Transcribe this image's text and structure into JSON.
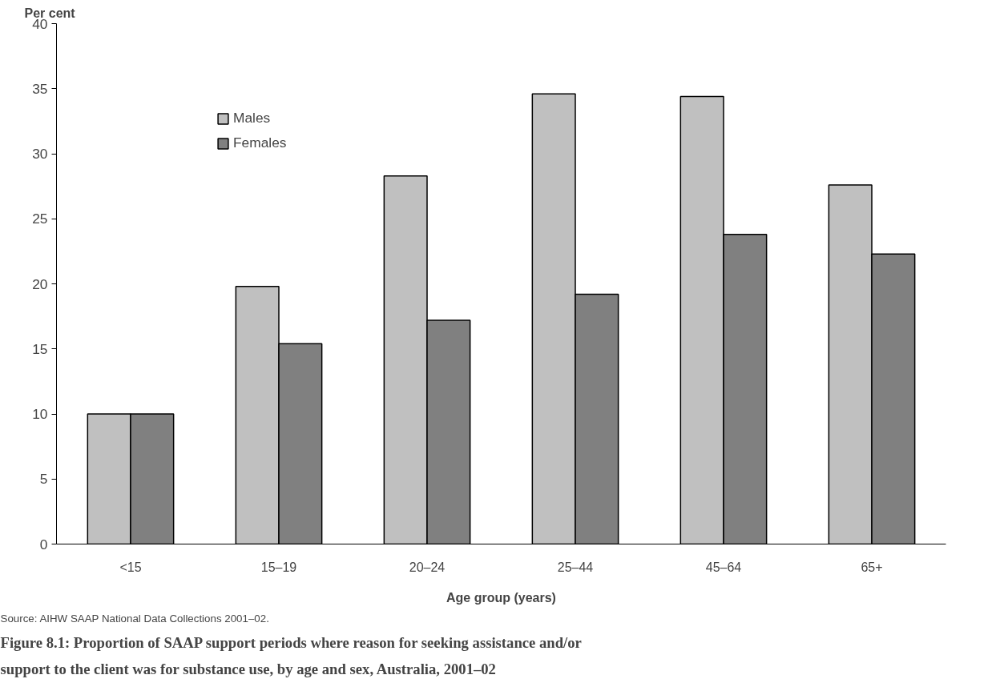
{
  "chart_data": {
    "type": "bar",
    "title": "Figure 8.1: Proportion of SAAP support periods where reason for seeking assistance and/or support to the client was for substance use, by age and sex, Australia, 2001–02",
    "ylabel": "Per cent",
    "xlabel": "Age group (years)",
    "categories": [
      "<15",
      "15–19",
      "20–24",
      "25–44",
      "45–64",
      "65+"
    ],
    "series": [
      {
        "name": "Males",
        "color": "#c0c0c0",
        "values": [
          10.0,
          19.8,
          28.3,
          34.6,
          34.4,
          27.6
        ]
      },
      {
        "name": "Females",
        "color": "#808080",
        "values": [
          10.0,
          15.4,
          17.2,
          19.2,
          23.8,
          22.3
        ]
      }
    ],
    "ylim": [
      0,
      40
    ],
    "yticks": [
      0,
      5,
      10,
      15,
      20,
      25,
      30,
      35,
      40
    ],
    "grid": false,
    "legend": "top left",
    "annotations": [
      "Source: AIHW SAAP National Data Collections 2001–02."
    ]
  }
}
